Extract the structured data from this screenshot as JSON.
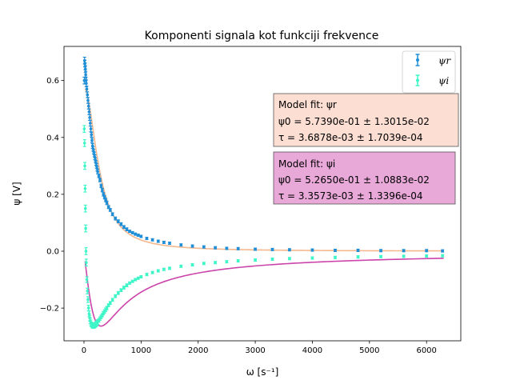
{
  "chart_data": {
    "type": "scatter",
    "title": "Komponenti signala kot funkciji frekvence",
    "xlabel": "ω [s⁻¹]",
    "ylabel": "ψ [V]",
    "xlim": [
      -350,
      6600
    ],
    "ylim": [
      -0.315,
      0.72
    ],
    "xticks": [
      0,
      1000,
      2000,
      3000,
      4000,
      5000,
      6000
    ],
    "yticks": [
      -0.2,
      0.0,
      0.2,
      0.4,
      0.6
    ],
    "xtick_labels": [
      "0",
      "1000",
      "2000",
      "3000",
      "4000",
      "5000",
      "6000"
    ],
    "ytick_labels": [
      "−0.2",
      "0.0",
      "0.2",
      "0.4",
      "0.6"
    ],
    "grid": false,
    "legend_position": "top-right",
    "colors": {
      "psi_r_points": "#1f8ed6",
      "psi_i_points": "#3ef5c8",
      "fit_r": "#f5b88e",
      "fit_i": "#cc44aa",
      "box_r_fill": "#fcded3",
      "box_i_fill": "#e8a8d8"
    },
    "series": [
      {
        "name": "ψr",
        "kind": "errorbar",
        "x": [
          5,
          10,
          15,
          20,
          25,
          30,
          35,
          40,
          50,
          60,
          70,
          80,
          90,
          100,
          110,
          120,
          130,
          140,
          150,
          160,
          170,
          180,
          190,
          200,
          210,
          220,
          230,
          240,
          260,
          280,
          300,
          320,
          340,
          360,
          380,
          400,
          430,
          460,
          500,
          550,
          600,
          650,
          700,
          750,
          800,
          850,
          900,
          950,
          1000,
          1100,
          1200,
          1300,
          1400,
          1500,
          1700,
          1900,
          2100,
          2300,
          2500,
          2700,
          3000,
          3300,
          3600,
          4000,
          4400,
          4800,
          5200,
          5600,
          6000,
          6280
        ],
        "y": [
          0.6,
          0.67,
          0.66,
          0.65,
          0.64,
          0.62,
          0.6,
          0.59,
          0.57,
          0.55,
          0.53,
          0.51,
          0.49,
          0.47,
          0.45,
          0.43,
          0.41,
          0.39,
          0.37,
          0.36,
          0.35,
          0.34,
          0.33,
          0.32,
          0.31,
          0.3,
          0.29,
          0.28,
          0.265,
          0.25,
          0.23,
          0.215,
          0.2,
          0.19,
          0.18,
          0.17,
          0.155,
          0.145,
          0.13,
          0.115,
          0.105,
          0.095,
          0.085,
          0.077,
          0.07,
          0.065,
          0.06,
          0.056,
          0.052,
          0.045,
          0.04,
          0.035,
          0.031,
          0.028,
          0.022,
          0.018,
          0.015,
          0.012,
          0.01,
          0.009,
          0.007,
          0.006,
          0.005,
          0.004,
          0.003,
          0.003,
          0.002,
          0.002,
          0.002,
          0.001
        ],
        "yerr": [
          0.012,
          0.012,
          0.012,
          0.012,
          0.012,
          0.012,
          0.012,
          0.012,
          0.01,
          0.01,
          0.01,
          0.01,
          0.01,
          0.01,
          0.01,
          0.01,
          0.008,
          0.008,
          0.008,
          0.008,
          0.008,
          0.008,
          0.008,
          0.008,
          0.008,
          0.008,
          0.008,
          0.008,
          0.006,
          0.006,
          0.006,
          0.006,
          0.006,
          0.006,
          0.006,
          0.006,
          0.005,
          0.005,
          0.005,
          0.005,
          0.005,
          0.005,
          0.005,
          0.005,
          0.004,
          0.004,
          0.004,
          0.004,
          0.004,
          0.004,
          0.004,
          0.004,
          0.004,
          0.004,
          0.004,
          0.004,
          0.004,
          0.004,
          0.004,
          0.004,
          0.004,
          0.004,
          0.004,
          0.004,
          0.004,
          0.004,
          0.004,
          0.004,
          0.004,
          0.004
        ]
      },
      {
        "name": "ψi",
        "kind": "errorbar",
        "x": [
          5,
          10,
          15,
          20,
          25,
          30,
          35,
          40,
          50,
          60,
          70,
          80,
          90,
          100,
          110,
          120,
          130,
          140,
          150,
          160,
          170,
          180,
          190,
          200,
          210,
          220,
          230,
          240,
          260,
          280,
          300,
          320,
          340,
          360,
          380,
          400,
          430,
          460,
          500,
          550,
          600,
          650,
          700,
          750,
          800,
          850,
          900,
          950,
          1000,
          1100,
          1200,
          1300,
          1400,
          1500,
          1700,
          1900,
          2100,
          2300,
          2500,
          2700,
          3000,
          3300,
          3600,
          4000,
          4400,
          4800,
          5200,
          5600,
          6000,
          6280
        ],
        "y": [
          0.43,
          0.38,
          0.3,
          0.22,
          0.15,
          0.08,
          0.0,
          -0.04,
          -0.1,
          -0.14,
          -0.17,
          -0.2,
          -0.22,
          -0.235,
          -0.245,
          -0.252,
          -0.257,
          -0.26,
          -0.262,
          -0.263,
          -0.263,
          -0.262,
          -0.261,
          -0.259,
          -0.257,
          -0.255,
          -0.252,
          -0.249,
          -0.243,
          -0.237,
          -0.231,
          -0.225,
          -0.218,
          -0.212,
          -0.206,
          -0.2,
          -0.19,
          -0.182,
          -0.171,
          -0.158,
          -0.147,
          -0.137,
          -0.128,
          -0.12,
          -0.112,
          -0.106,
          -0.1,
          -0.095,
          -0.09,
          -0.082,
          -0.075,
          -0.069,
          -0.064,
          -0.06,
          -0.053,
          -0.048,
          -0.043,
          -0.04,
          -0.037,
          -0.034,
          -0.031,
          -0.028,
          -0.026,
          -0.024,
          -0.022,
          -0.02,
          -0.019,
          -0.018,
          -0.017,
          -0.016
        ],
        "yerr": [
          0.012,
          0.012,
          0.012,
          0.012,
          0.012,
          0.012,
          0.012,
          0.012,
          0.01,
          0.01,
          0.01,
          0.01,
          0.01,
          0.01,
          0.01,
          0.01,
          0.008,
          0.008,
          0.008,
          0.008,
          0.008,
          0.008,
          0.008,
          0.008,
          0.008,
          0.008,
          0.008,
          0.008,
          0.006,
          0.006,
          0.006,
          0.006,
          0.006,
          0.006,
          0.006,
          0.006,
          0.005,
          0.005,
          0.005,
          0.005,
          0.005,
          0.005,
          0.005,
          0.005,
          0.004,
          0.004,
          0.004,
          0.004,
          0.004,
          0.004,
          0.004,
          0.004,
          0.004,
          0.004,
          0.004,
          0.004,
          0.004,
          0.004,
          0.004,
          0.004,
          0.004,
          0.004,
          0.004,
          0.004,
          0.004,
          0.004,
          0.004,
          0.004,
          0.004,
          0.004
        ]
      }
    ],
    "fits": [
      {
        "component": "real",
        "x_start": 20,
        "psi0": 0.5739,
        "tau": 0.0036878
      },
      {
        "component": "imag",
        "x_start": 20,
        "psi0": 0.5265,
        "tau": 0.0033573
      }
    ],
    "annotations": [
      {
        "id": "fit_r",
        "lines": [
          "Model fit: ψr",
          "ψ0 =  5.7390e-01 ± 1.3015e-02",
          "τ = 3.6878e-03 ± 1.7039e-04"
        ]
      },
      {
        "id": "fit_i",
        "lines": [
          "Model fit: ψi",
          "ψ0 = 5.2650e-01 ± 1.0883e-02",
          "τ = 3.3573e-03 ± 1.3396e-04"
        ]
      }
    ],
    "legend": [
      "ψr",
      "ψi"
    ]
  }
}
